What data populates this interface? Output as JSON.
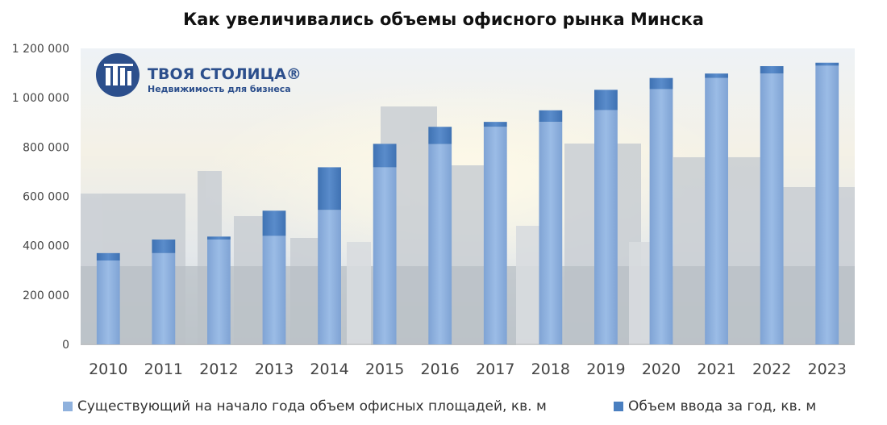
{
  "chart_data": {
    "type": "bar",
    "stacked": true,
    "title": "Как увеличивались объемы офисного рынка Минска",
    "xlabel": "",
    "ylabel": "",
    "categories": [
      "2010",
      "2011",
      "2012",
      "2013",
      "2014",
      "2015",
      "2016",
      "2017",
      "2018",
      "2019",
      "2020",
      "2021",
      "2022",
      "2023"
    ],
    "series": [
      {
        "name": "Существующий на начало года объем офисных площадей, кв. м",
        "color": "#8fb1dd",
        "values": [
          340000,
          370000,
          425000,
          440000,
          545000,
          718000,
          812000,
          882000,
          902000,
          950000,
          1035000,
          1080000,
          1098000,
          1130000
        ]
      },
      {
        "name": "Объем ввода за год, кв. м",
        "color": "#4a7fc0",
        "values": [
          30000,
          55000,
          12000,
          102000,
          173000,
          95000,
          70000,
          20000,
          47000,
          82000,
          45000,
          18000,
          30000,
          12000
        ]
      }
    ],
    "ylim": [
      0,
      1200000
    ],
    "yticks": [
      0,
      200000,
      400000,
      600000,
      800000,
      1000000,
      1200000
    ],
    "ytick_labels": [
      "0",
      "200 000",
      "400 000",
      "600 000",
      "800 000",
      "1 000 000",
      "1 200 000"
    ],
    "legend_position": "bottom",
    "background": "city skyline photo"
  },
  "logo": {
    "name": "ТВОЯ СТОЛИЦА®",
    "tagline": "Недвижимость для бизнеса"
  }
}
